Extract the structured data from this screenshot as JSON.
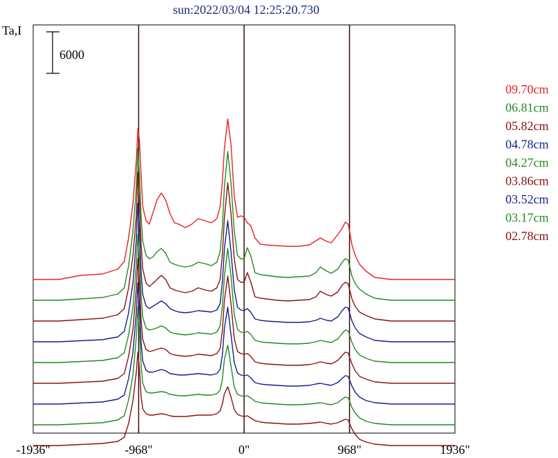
{
  "chart_data": {
    "type": "line",
    "title": "sun:2022/03/04 12:25:20.730",
    "ylabel": "Ta,I",
    "scale_bar_label": "6000",
    "scale_bar_value": 6000,
    "xlim": [
      -1936,
      1936
    ],
    "x_ticks": [
      -1936,
      -968,
      0,
      968,
      1936
    ],
    "x_tick_labels": [
      "-1936\"",
      "-968\"",
      "0\"",
      "968\"",
      "1936\""
    ],
    "vertical_lines": [
      -968,
      0,
      968
    ],
    "grid": false,
    "legend_position": "right",
    "x": [
      -1936,
      -1700,
      -1500,
      -1300,
      -1160,
      -1100,
      -1060,
      -1020,
      -990,
      -975,
      -960,
      -945,
      -930,
      -900,
      -870,
      -840,
      -800,
      -760,
      -720,
      -680,
      -640,
      -600,
      -540,
      -480,
      -420,
      -360,
      -300,
      -250,
      -220,
      -200,
      -180,
      -150,
      -120,
      -90,
      -60,
      -30,
      0,
      30,
      60,
      100,
      150,
      200,
      300,
      400,
      500,
      600,
      660,
      700,
      760,
      800,
      860,
      900,
      930,
      955,
      968,
      990,
      1020,
      1060,
      1120,
      1200,
      1350,
      1500,
      1700,
      1936
    ],
    "series": [
      {
        "name": "09.70cm",
        "color": "#e8211c",
        "offset": 22000,
        "values": [
          0,
          0,
          600,
          800,
          1500,
          2600,
          6000,
          11000,
          17000,
          21800,
          20000,
          15000,
          10500,
          8500,
          8000,
          9500,
          11500,
          12500,
          11500,
          9500,
          8200,
          8000,
          7500,
          8000,
          8800,
          8500,
          8200,
          8800,
          10500,
          14000,
          19000,
          23200,
          19500,
          12000,
          9000,
          9200,
          9000,
          8200,
          7800,
          6000,
          5100,
          5000,
          4900,
          4800,
          4800,
          5000,
          5600,
          6000,
          5500,
          5300,
          6500,
          7400,
          8300,
          8000,
          7000,
          5000,
          3500,
          2200,
          1200,
          300,
          0,
          0,
          0,
          0
        ]
      },
      {
        "name": "06.81cm",
        "color": "#1f8a1f",
        "offset": 19000,
        "values": [
          0,
          0,
          200,
          400,
          900,
          1800,
          5000,
          10000,
          16000,
          22000,
          18000,
          12000,
          8500,
          6500,
          6000,
          6200,
          7000,
          7500,
          6800,
          5500,
          5200,
          5000,
          4800,
          5000,
          5500,
          5300,
          5000,
          5500,
          7000,
          10500,
          16500,
          21500,
          17000,
          10000,
          6500,
          6000,
          6000,
          7600,
          6500,
          4000,
          3700,
          3600,
          3400,
          3300,
          3400,
          3500,
          4000,
          4800,
          4200,
          3900,
          4500,
          5500,
          6000,
          5800,
          5000,
          3500,
          2400,
          1600,
          900,
          300,
          0,
          0,
          0,
          0
        ]
      },
      {
        "name": "05.82cm",
        "color": "#8b1010",
        "offset": 16000,
        "values": [
          0,
          0,
          200,
          400,
          900,
          1800,
          4800,
          9500,
          15000,
          21500,
          17000,
          11000,
          7500,
          5500,
          5000,
          5400,
          6000,
          6600,
          6000,
          4800,
          4500,
          4300,
          4100,
          4300,
          4800,
          4500,
          4300,
          4800,
          6000,
          9500,
          15000,
          20000,
          15500,
          9000,
          6000,
          5600,
          5600,
          7000,
          5700,
          3500,
          3300,
          3200,
          3000,
          2900,
          3000,
          3100,
          3500,
          4300,
          3800,
          3600,
          4200,
          5200,
          5600,
          5400,
          4600,
          3200,
          2100,
          1300,
          800,
          300,
          0,
          0,
          0,
          0
        ]
      },
      {
        "name": "04.78cm",
        "color": "#141e8c",
        "offset": 13000,
        "values": [
          0,
          0,
          150,
          300,
          700,
          1500,
          4200,
          8500,
          14500,
          20000,
          16000,
          10000,
          6800,
          5200,
          4800,
          5100,
          5500,
          5900,
          5500,
          4800,
          4500,
          4300,
          4200,
          4300,
          4500,
          4400,
          4300,
          4600,
          5500,
          8500,
          13500,
          17500,
          13000,
          7500,
          5000,
          4600,
          4500,
          4800,
          4300,
          3300,
          3100,
          3000,
          2900,
          2800,
          2800,
          2900,
          3100,
          3400,
          3100,
          3000,
          3600,
          4500,
          5000,
          4900,
          4200,
          3000,
          2000,
          1200,
          700,
          200,
          0,
          0,
          0,
          0
        ]
      },
      {
        "name": "04.27cm",
        "color": "#1f8a1f",
        "offset": 10000,
        "values": [
          0,
          0,
          150,
          300,
          700,
          1400,
          4000,
          8000,
          14000,
          18500,
          15000,
          9500,
          6500,
          5000,
          4700,
          4800,
          5000,
          5300,
          5000,
          4400,
          4200,
          4100,
          4000,
          4100,
          4300,
          4200,
          4100,
          4400,
          5300,
          8000,
          12500,
          16500,
          12500,
          7000,
          4800,
          4400,
          4300,
          4500,
          4100,
          3200,
          3000,
          2900,
          2800,
          2700,
          2700,
          2800,
          3000,
          3200,
          3000,
          2900,
          3400,
          4200,
          4700,
          4600,
          4000,
          2900,
          1900,
          1100,
          600,
          200,
          0,
          0,
          0,
          0
        ]
      },
      {
        "name": "03.86cm",
        "color": "#8b1010",
        "offset": 7000,
        "values": [
          0,
          0,
          150,
          300,
          700,
          1400,
          3900,
          7800,
          13500,
          18000,
          14500,
          9000,
          6300,
          4900,
          4600,
          4700,
          4900,
          5100,
          4900,
          4300,
          4100,
          4000,
          3900,
          4000,
          4200,
          4100,
          4000,
          4300,
          5000,
          7500,
          12000,
          15500,
          11500,
          6500,
          4600,
          4300,
          4200,
          4300,
          3900,
          3100,
          2900,
          2800,
          2700,
          2600,
          2600,
          2700,
          2900,
          3100,
          2900,
          2800,
          3300,
          4000,
          4500,
          4400,
          3800,
          2800,
          1800,
          1000,
          600,
          200,
          0,
          0,
          0,
          0
        ]
      },
      {
        "name": "03.52cm",
        "color": "#141e8c",
        "offset": 4000,
        "values": [
          0,
          0,
          150,
          300,
          700,
          1300,
          3700,
          7500,
          13000,
          17500,
          14000,
          8800,
          6200,
          4900,
          4600,
          4600,
          4800,
          5000,
          4800,
          4400,
          4300,
          4200,
          4200,
          4300,
          4400,
          4300,
          4200,
          4400,
          5000,
          7000,
          11000,
          14000,
          10000,
          6000,
          4500,
          4200,
          4100,
          4200,
          3800,
          3100,
          2900,
          2800,
          2700,
          2600,
          2600,
          2700,
          2900,
          3000,
          2800,
          2700,
          3100,
          3700,
          4100,
          4000,
          3500,
          2600,
          1700,
          1000,
          500,
          200,
          0,
          0,
          0,
          0
        ]
      },
      {
        "name": "03.17cm",
        "color": "#1f8a1f",
        "offset": 1000,
        "values": [
          0,
          0,
          150,
          300,
          700,
          1300,
          3600,
          7200,
          12500,
          17000,
          13500,
          8500,
          6000,
          4800,
          4600,
          4600,
          4700,
          4800,
          4700,
          4400,
          4300,
          4200,
          4200,
          4300,
          4400,
          4300,
          4300,
          4500,
          5000,
          6500,
          9500,
          11500,
          8500,
          5500,
          4400,
          4200,
          4100,
          4200,
          3900,
          3400,
          3200,
          3100,
          3000,
          2900,
          2900,
          3000,
          3100,
          3200,
          3000,
          2900,
          3200,
          3700,
          4000,
          3900,
          3400,
          2500,
          1700,
          1000,
          500,
          200,
          0,
          0,
          0,
          0
        ]
      },
      {
        "name": "02.78cm",
        "color": "#8b1010",
        "offset": -2000,
        "values": [
          0,
          0,
          150,
          300,
          600,
          1200,
          3200,
          6500,
          10500,
          13500,
          11000,
          7000,
          5300,
          4600,
          4400,
          4400,
          4500,
          4600,
          4500,
          4300,
          4200,
          4200,
          4200,
          4300,
          4400,
          4400,
          4400,
          4600,
          5000,
          6000,
          7500,
          8500,
          7000,
          5200,
          4500,
          4300,
          4200,
          4300,
          4000,
          3600,
          3400,
          3300,
          3200,
          3100,
          3100,
          3200,
          3300,
          3400,
          3200,
          3100,
          3300,
          3600,
          3800,
          3700,
          3200,
          2400,
          1600,
          900,
          500,
          200,
          0,
          0,
          0,
          0
        ]
      }
    ]
  }
}
